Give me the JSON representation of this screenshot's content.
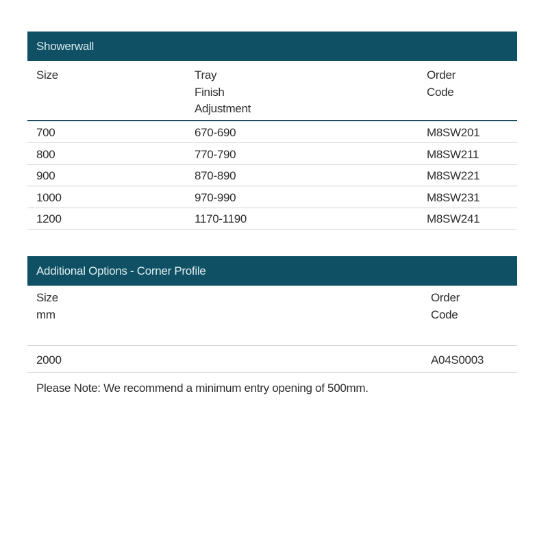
{
  "showerwall": {
    "title": "Showerwall",
    "headers": [
      "Size",
      "Tray\nFinish\nAdjustment",
      "Order\nCode"
    ],
    "rows": [
      [
        "700",
        "670-690",
        "M8SW201"
      ],
      [
        "800",
        "770-790",
        "M8SW211"
      ],
      [
        "900",
        "870-890",
        "M8SW221"
      ],
      [
        "1000",
        "970-990",
        "M8SW231"
      ],
      [
        "1200",
        "1170-1190",
        "M8SW241"
      ]
    ]
  },
  "corner_profile": {
    "title": "Additional Options - Corner Profile",
    "headers": [
      "Size\nmm",
      "Order\nCode"
    ],
    "rows": [
      [
        "2000",
        "A04S0003"
      ]
    ]
  },
  "note": "Please Note: We recommend a minimum entry opening of 500mm.",
  "colors": {
    "header_bar": "#0f5064",
    "header_text": "#dcecef"
  }
}
